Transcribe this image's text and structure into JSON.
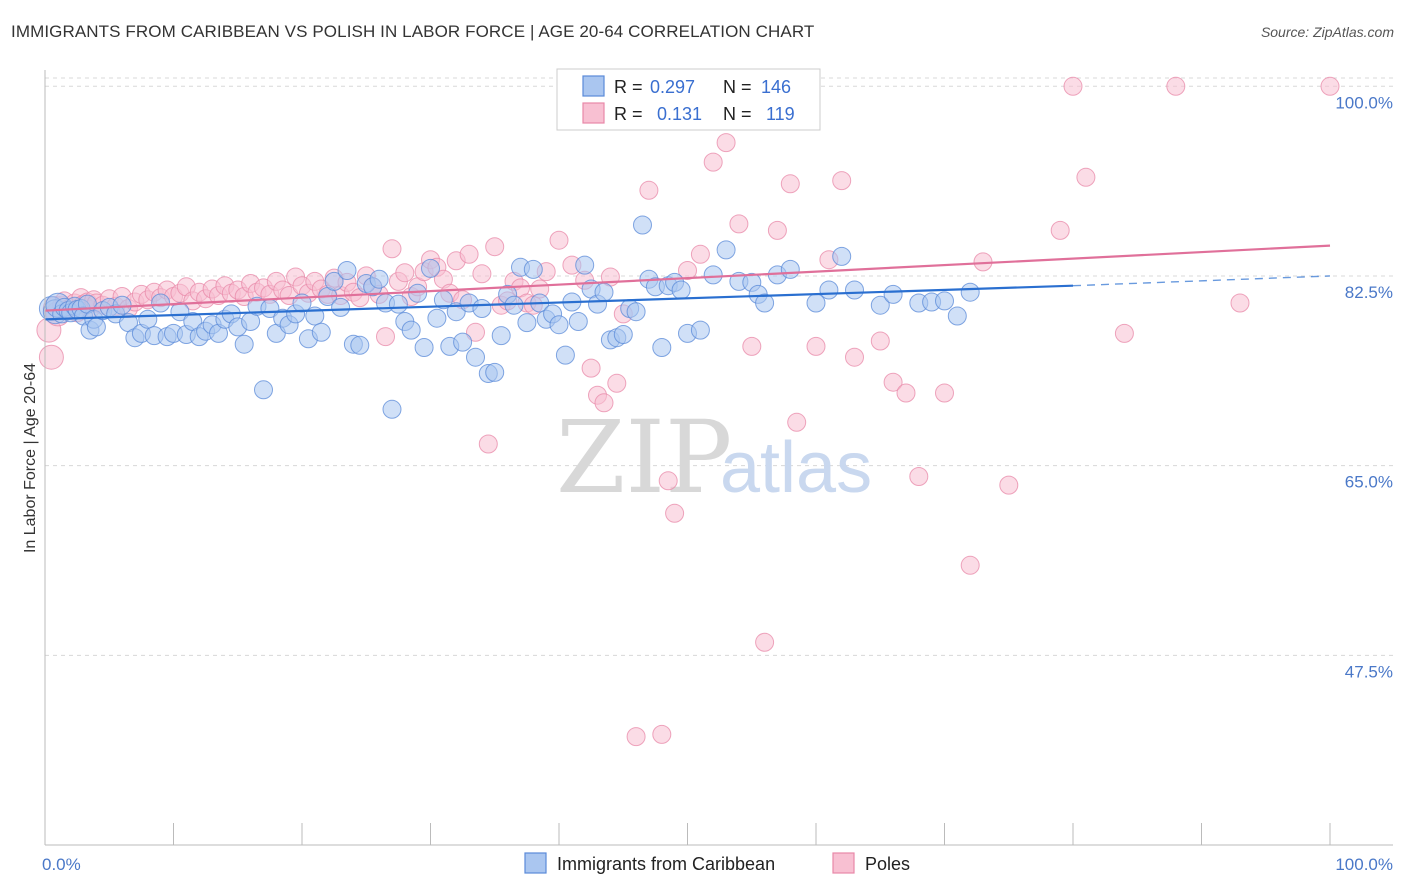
{
  "header": {
    "title": "IMMIGRANTS FROM CARIBBEAN VS POLISH IN LABOR FORCE | AGE 20-64 CORRELATION CHART",
    "source": "Source: ZipAtlas.com"
  },
  "watermark": {
    "zip": "ZIP",
    "atlas": "atlas"
  },
  "legend": {
    "rows": [
      {
        "r_label": "R =",
        "r_value": "0.297",
        "n_label": "N =",
        "n_value": "146"
      },
      {
        "r_label": "R =",
        "r_value": "0.131",
        "n_label": "N =",
        "n_value": "119"
      }
    ]
  },
  "colors": {
    "blue_fill": "#aac6f0",
    "blue_stroke": "#5a8ad8",
    "blue_line": "#2a6fd0",
    "pink_fill": "#f8c0d2",
    "pink_stroke": "#e888a8",
    "pink_line": "#e0709a",
    "grid": "#d8d8d8",
    "axis": "#bbbbbb"
  },
  "chart_data": {
    "type": "scatter",
    "title": "IMMIGRANTS FROM CARIBBEAN VS POLISH IN LABOR FORCE | AGE 20-64 CORRELATION CHART",
    "xlabel": "",
    "ylabel": "In Labor Force | Age 20-64",
    "xlim": [
      0,
      100
    ],
    "ylim": [
      30,
      101.5
    ],
    "x_tick_labels": [
      "0.0%",
      "100.0%"
    ],
    "y_ticks": [
      47.5,
      65.0,
      82.5,
      100.0
    ],
    "y_tick_labels": [
      "47.5%",
      "65.0%",
      "82.5%",
      "100.0%"
    ],
    "legend_labels": [
      "Immigrants from Caribbean",
      "Poles"
    ],
    "series": [
      {
        "name": "Immigrants from Caribbean",
        "trend": {
          "x0": 0,
          "y0": 78.5,
          "x1": 80,
          "y1": 81.6,
          "dash_to_x": 100,
          "dash_to_y": 82.5
        },
        "points": [
          [
            0.5,
            79.5
          ],
          [
            0.8,
            79.2
          ],
          [
            1.0,
            79.8
          ],
          [
            1.3,
            79.0
          ],
          [
            1.5,
            79.6
          ],
          [
            1.8,
            79.3
          ],
          [
            2.0,
            79.1
          ],
          [
            2.3,
            79.7
          ],
          [
            2.5,
            79.4
          ],
          [
            2.8,
            79.5
          ],
          [
            3.0,
            78.8
          ],
          [
            3.3,
            79.9
          ],
          [
            3.5,
            77.5
          ],
          [
            3.8,
            78.5
          ],
          [
            4.0,
            77.8
          ],
          [
            4.5,
            79.3
          ],
          [
            5.0,
            79.6
          ],
          [
            5.5,
            79.0
          ],
          [
            6.0,
            79.8
          ],
          [
            6.5,
            78.2
          ],
          [
            7.0,
            76.8
          ],
          [
            7.5,
            77.2
          ],
          [
            8.0,
            78.5
          ],
          [
            8.5,
            77.0
          ],
          [
            9.0,
            80.0
          ],
          [
            9.5,
            76.9
          ],
          [
            10.0,
            77.2
          ],
          [
            10.5,
            79.2
          ],
          [
            11.0,
            77.1
          ],
          [
            11.5,
            78.3
          ],
          [
            12.0,
            76.9
          ],
          [
            12.5,
            77.4
          ],
          [
            13.0,
            78.0
          ],
          [
            13.5,
            77.2
          ],
          [
            14.0,
            78.5
          ],
          [
            14.5,
            79.0
          ],
          [
            15.0,
            77.8
          ],
          [
            15.5,
            76.2
          ],
          [
            16.0,
            78.3
          ],
          [
            16.5,
            79.7
          ],
          [
            17.0,
            72.0
          ],
          [
            17.5,
            79.5
          ],
          [
            18.0,
            77.2
          ],
          [
            18.5,
            78.6
          ],
          [
            19.0,
            78.0
          ],
          [
            19.5,
            79.0
          ],
          [
            20.0,
            80.0
          ],
          [
            20.5,
            76.7
          ],
          [
            21.0,
            78.8
          ],
          [
            21.5,
            77.3
          ],
          [
            22.0,
            80.6
          ],
          [
            22.5,
            82.0
          ],
          [
            23.0,
            79.6
          ],
          [
            23.5,
            83.0
          ],
          [
            24.0,
            76.2
          ],
          [
            24.5,
            76.1
          ],
          [
            25.0,
            81.8
          ],
          [
            25.5,
            81.5
          ],
          [
            26.0,
            82.2
          ],
          [
            26.5,
            80.0
          ],
          [
            27.0,
            70.2
          ],
          [
            27.5,
            79.9
          ],
          [
            28.0,
            78.3
          ],
          [
            28.5,
            77.5
          ],
          [
            29.0,
            80.9
          ],
          [
            29.5,
            75.9
          ],
          [
            30.0,
            83.2
          ],
          [
            30.5,
            78.6
          ],
          [
            31.0,
            80.3
          ],
          [
            31.5,
            76.0
          ],
          [
            32.0,
            79.2
          ],
          [
            32.5,
            76.4
          ],
          [
            33.0,
            80.0
          ],
          [
            33.5,
            75.0
          ],
          [
            34.0,
            79.5
          ],
          [
            34.5,
            73.5
          ],
          [
            35.0,
            73.6
          ],
          [
            35.5,
            77.0
          ],
          [
            36.0,
            80.8
          ],
          [
            36.5,
            79.8
          ],
          [
            37.0,
            83.3
          ],
          [
            37.5,
            78.2
          ],
          [
            38.0,
            83.1
          ],
          [
            38.5,
            80.0
          ],
          [
            39.0,
            78.5
          ],
          [
            39.5,
            79.0
          ],
          [
            40.0,
            78.0
          ],
          [
            40.5,
            75.2
          ],
          [
            41.0,
            80.1
          ],
          [
            41.5,
            78.3
          ],
          [
            42.0,
            83.5
          ],
          [
            42.5,
            81.3
          ],
          [
            43.0,
            79.9
          ],
          [
            43.5,
            81.0
          ],
          [
            44.0,
            76.6
          ],
          [
            44.5,
            76.8
          ],
          [
            45.0,
            77.1
          ],
          [
            45.5,
            79.5
          ],
          [
            46.0,
            79.2
          ],
          [
            46.5,
            87.2
          ],
          [
            47.0,
            82.2
          ],
          [
            47.5,
            81.5
          ],
          [
            48.0,
            75.9
          ],
          [
            48.5,
            81.6
          ],
          [
            49.0,
            81.9
          ],
          [
            49.5,
            81.2
          ],
          [
            50.0,
            77.2
          ],
          [
            51.0,
            77.5
          ],
          [
            52.0,
            82.6
          ],
          [
            53.0,
            84.9
          ],
          [
            54.0,
            82.0
          ],
          [
            55.0,
            81.9
          ],
          [
            55.5,
            80.8
          ],
          [
            56.0,
            80.0
          ],
          [
            57.0,
            82.6
          ],
          [
            58.0,
            83.1
          ],
          [
            60.0,
            80.0
          ],
          [
            61.0,
            81.2
          ],
          [
            62.0,
            84.3
          ],
          [
            63.0,
            81.2
          ],
          [
            65.0,
            79.8
          ],
          [
            66.0,
            80.8
          ],
          [
            68.0,
            80.0
          ],
          [
            69.0,
            80.1
          ],
          [
            70.0,
            80.2
          ],
          [
            71.0,
            78.8
          ],
          [
            72.0,
            81.0
          ]
        ]
      },
      {
        "name": "Poles",
        "trend": {
          "x0": 0,
          "y0": 79.3,
          "x1": 100,
          "y1": 85.3
        },
        "points": [
          [
            0.3,
            77.5
          ],
          [
            0.5,
            75.0
          ],
          [
            0.8,
            79.5
          ],
          [
            1.0,
            79.0
          ],
          [
            1.3,
            79.8
          ],
          [
            1.5,
            80.2
          ],
          [
            1.8,
            79.3
          ],
          [
            2.0,
            79.6
          ],
          [
            2.3,
            80.0
          ],
          [
            2.5,
            79.1
          ],
          [
            2.8,
            80.5
          ],
          [
            3.0,
            79.9
          ],
          [
            3.3,
            80.1
          ],
          [
            3.5,
            79.4
          ],
          [
            3.8,
            80.3
          ],
          [
            4.0,
            80.0
          ],
          [
            4.5,
            79.8
          ],
          [
            5.0,
            80.4
          ],
          [
            5.5,
            79.7
          ],
          [
            6.0,
            80.6
          ],
          [
            6.5,
            79.5
          ],
          [
            7.0,
            80.1
          ],
          [
            7.5,
            80.8
          ],
          [
            8.0,
            80.3
          ],
          [
            8.5,
            81.0
          ],
          [
            9.0,
            80.5
          ],
          [
            9.5,
            81.2
          ],
          [
            10.0,
            80.6
          ],
          [
            10.5,
            80.9
          ],
          [
            11.0,
            81.5
          ],
          [
            11.5,
            80.2
          ],
          [
            12.0,
            81.0
          ],
          [
            12.5,
            80.4
          ],
          [
            13.0,
            81.3
          ],
          [
            13.5,
            80.7
          ],
          [
            14.0,
            81.6
          ],
          [
            14.5,
            80.9
          ],
          [
            15.0,
            81.2
          ],
          [
            15.5,
            80.6
          ],
          [
            16.0,
            81.8
          ],
          [
            16.5,
            81.0
          ],
          [
            17.0,
            81.4
          ],
          [
            17.5,
            80.8
          ],
          [
            18.0,
            82.0
          ],
          [
            18.5,
            81.2
          ],
          [
            19.0,
            80.7
          ],
          [
            19.5,
            82.4
          ],
          [
            20.0,
            81.6
          ],
          [
            20.5,
            80.9
          ],
          [
            21.0,
            82.0
          ],
          [
            21.5,
            81.3
          ],
          [
            22.0,
            80.8
          ],
          [
            22.5,
            82.3
          ],
          [
            23.0,
            80.7
          ],
          [
            23.5,
            81.9
          ],
          [
            24.0,
            81.0
          ],
          [
            24.5,
            80.5
          ],
          [
            25.0,
            82.5
          ],
          [
            25.5,
            81.5
          ],
          [
            26.0,
            80.8
          ],
          [
            26.5,
            76.9
          ],
          [
            27.0,
            85.0
          ],
          [
            27.5,
            82.0
          ],
          [
            28.0,
            82.8
          ],
          [
            28.5,
            80.6
          ],
          [
            29.0,
            81.5
          ],
          [
            29.5,
            82.9
          ],
          [
            30.0,
            84.0
          ],
          [
            30.5,
            83.3
          ],
          [
            31.0,
            82.2
          ],
          [
            31.5,
            80.9
          ],
          [
            32.0,
            83.9
          ],
          [
            32.5,
            80.3
          ],
          [
            33.0,
            84.5
          ],
          [
            33.5,
            77.3
          ],
          [
            34.0,
            82.7
          ],
          [
            34.5,
            67.0
          ],
          [
            35.0,
            85.2
          ],
          [
            35.5,
            79.8
          ],
          [
            36.0,
            80.2
          ],
          [
            36.5,
            82.0
          ],
          [
            37.0,
            81.4
          ],
          [
            37.5,
            80.0
          ],
          [
            38.0,
            79.8
          ],
          [
            38.5,
            81.3
          ],
          [
            39.0,
            82.9
          ],
          [
            40.0,
            85.8
          ],
          [
            41.0,
            83.5
          ],
          [
            42.0,
            82.1
          ],
          [
            42.5,
            74.0
          ],
          [
            43.0,
            71.5
          ],
          [
            43.5,
            70.8
          ],
          [
            44.0,
            82.4
          ],
          [
            44.5,
            72.6
          ],
          [
            45.0,
            79.0
          ],
          [
            46.0,
            40.0
          ],
          [
            47.0,
            90.4
          ],
          [
            48.0,
            40.2
          ],
          [
            48.5,
            63.6
          ],
          [
            49.0,
            60.6
          ],
          [
            50.0,
            83.0
          ],
          [
            51.0,
            84.5
          ],
          [
            52.0,
            93.0
          ],
          [
            53.0,
            94.8
          ],
          [
            54.0,
            87.3
          ],
          [
            55.0,
            76.0
          ],
          [
            56.0,
            48.7
          ],
          [
            57.0,
            86.7
          ],
          [
            58.0,
            91.0
          ],
          [
            58.5,
            69.0
          ],
          [
            60.0,
            76.0
          ],
          [
            61.0,
            84.0
          ],
          [
            62.0,
            91.3
          ],
          [
            63.0,
            75.0
          ],
          [
            65.0,
            76.5
          ],
          [
            66.0,
            72.7
          ],
          [
            67.0,
            71.7
          ],
          [
            68.0,
            64.0
          ],
          [
            70.0,
            71.7
          ],
          [
            72.0,
            55.8
          ],
          [
            73.0,
            83.8
          ],
          [
            75.0,
            63.2
          ],
          [
            79.0,
            86.7
          ],
          [
            80.0,
            100.0
          ],
          [
            81.0,
            91.6
          ],
          [
            84.0,
            77.2
          ],
          [
            88.0,
            100.0
          ],
          [
            93.0,
            80.0
          ],
          [
            100.0,
            100.0
          ]
        ]
      }
    ]
  }
}
